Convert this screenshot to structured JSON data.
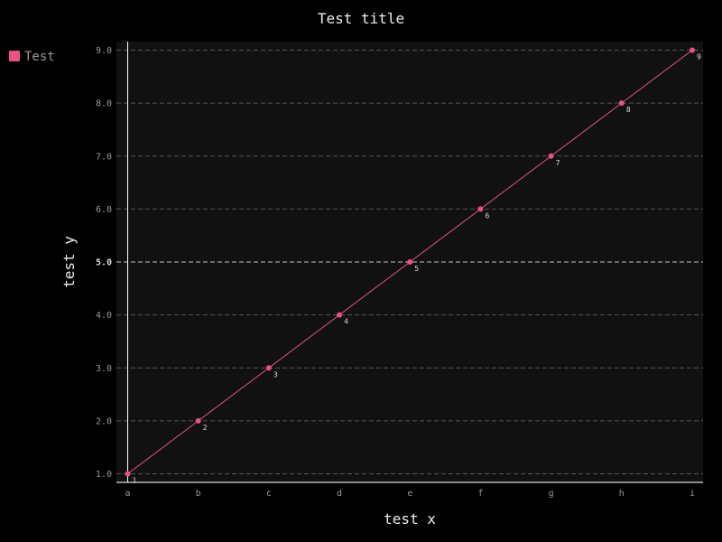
{
  "chart_data": {
    "type": "line",
    "title": "Test title",
    "xlabel": "test x",
    "ylabel": "test y",
    "categories": [
      "a",
      "b",
      "c",
      "d",
      "e",
      "f",
      "g",
      "h",
      "i"
    ],
    "series": [
      {
        "name": "Test",
        "values": [
          1,
          2,
          3,
          4,
          5,
          6,
          7,
          8,
          9
        ],
        "data_labels": [
          "1",
          "2",
          "3",
          "4",
          "5",
          "6",
          "7",
          "8",
          "9"
        ],
        "color": "#e95380"
      }
    ],
    "ylim": [
      1,
      9
    ],
    "yticks": [
      "1.0",
      "2.0",
      "3.0",
      "4.0",
      "5.0",
      "6.0",
      "7.0",
      "8.0",
      "9.0"
    ],
    "major_ytick": "5.0",
    "grid": true,
    "legend_position": "top-left",
    "colors": {
      "background": "#000000",
      "plot_background": "#111111",
      "grid": "#555555",
      "axis": "#ffffff"
    }
  }
}
